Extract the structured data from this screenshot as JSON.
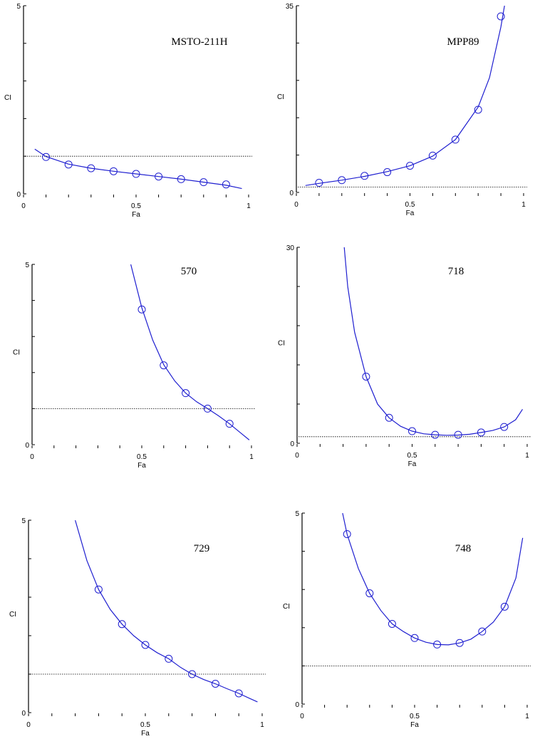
{
  "chart_data": [
    {
      "type": "line",
      "title": "MSTO-211H",
      "xlabel": "Fa",
      "ylabel": "CI",
      "xlim": [
        0,
        1
      ],
      "ylim": [
        0,
        5
      ],
      "xticks": [
        "0",
        "0.5",
        "1"
      ],
      "yticks": [
        "0",
        "5"
      ],
      "reference_y": 1,
      "points": {
        "x": [
          0.1,
          0.2,
          0.3,
          0.4,
          0.5,
          0.6,
          0.7,
          0.8,
          0.9
        ],
        "y": [
          0.98,
          0.78,
          0.68,
          0.6,
          0.53,
          0.46,
          0.39,
          0.31,
          0.25
        ]
      },
      "curve": {
        "x": [
          0.05,
          0.1,
          0.2,
          0.3,
          0.4,
          0.5,
          0.6,
          0.7,
          0.8,
          0.9,
          0.97
        ],
        "y": [
          1.19,
          0.99,
          0.79,
          0.68,
          0.6,
          0.53,
          0.46,
          0.39,
          0.31,
          0.23,
          0.14
        ]
      }
    },
    {
      "type": "line",
      "title": "MPP89",
      "xlabel": "Fa",
      "ylabel": "CI",
      "xlim": [
        0,
        1
      ],
      "ylim": [
        0,
        35
      ],
      "xticks": [
        "0",
        "0.5",
        "1"
      ],
      "yticks": [
        "0",
        "35"
      ],
      "reference_y": 1,
      "points": {
        "x": [
          0.1,
          0.2,
          0.3,
          0.4,
          0.5,
          0.6,
          0.7,
          0.8,
          0.9
        ],
        "y": [
          1.8,
          2.3,
          3.1,
          3.8,
          5.0,
          6.9,
          9.9,
          15.5,
          33.0
        ]
      },
      "curve": {
        "x": [
          0.04,
          0.1,
          0.2,
          0.3,
          0.4,
          0.5,
          0.6,
          0.7,
          0.8,
          0.85,
          0.9,
          0.92
        ],
        "y": [
          1.3,
          1.7,
          2.3,
          3.0,
          3.9,
          5.0,
          6.8,
          9.9,
          16.0,
          21.5,
          31.0,
          36.0
        ]
      }
    },
    {
      "type": "line",
      "title": "570",
      "xlabel": "Fa",
      "ylabel": "CI",
      "xlim": [
        0,
        1
      ],
      "ylim": [
        0,
        5
      ],
      "xticks": [
        "0",
        "0.5",
        "1"
      ],
      "yticks": [
        "0",
        "5"
      ],
      "reference_y": 1,
      "points": {
        "x": [
          0.5,
          0.6,
          0.7,
          0.8,
          0.9
        ],
        "y": [
          3.75,
          2.2,
          1.43,
          1.0,
          0.58
        ]
      },
      "curve": {
        "x": [
          0.45,
          0.5,
          0.55,
          0.6,
          0.65,
          0.7,
          0.75,
          0.8,
          0.85,
          0.9,
          0.95,
          0.99
        ],
        "y": [
          5.0,
          3.8,
          2.9,
          2.22,
          1.77,
          1.43,
          1.19,
          1.0,
          0.8,
          0.58,
          0.33,
          0.13
        ]
      }
    },
    {
      "type": "line",
      "title": "718",
      "xlabel": "Fa",
      "ylabel": "CI",
      "xlim": [
        0,
        1
      ],
      "ylim": [
        0,
        30
      ],
      "xticks": [
        "0",
        "0.5",
        "1"
      ],
      "yticks": [
        "0",
        "30"
      ],
      "reference_y": 1,
      "points": {
        "x": [
          0.3,
          0.4,
          0.5,
          0.6,
          0.7,
          0.8,
          0.9
        ],
        "y": [
          10.2,
          3.9,
          1.85,
          1.3,
          1.3,
          1.65,
          2.5
        ]
      },
      "curve": {
        "x": [
          0.2,
          0.22,
          0.25,
          0.3,
          0.35,
          0.4,
          0.45,
          0.5,
          0.55,
          0.6,
          0.65,
          0.7,
          0.75,
          0.8,
          0.85,
          0.9,
          0.95,
          0.98
        ],
        "y": [
          32.0,
          24.0,
          17.0,
          10.2,
          6.0,
          3.9,
          2.6,
          1.85,
          1.45,
          1.3,
          1.22,
          1.25,
          1.38,
          1.65,
          1.95,
          2.5,
          3.6,
          5.2
        ]
      }
    },
    {
      "type": "line",
      "title": "729",
      "xlabel": "Fa",
      "ylabel": "CI",
      "xlim": [
        0,
        1
      ],
      "ylim": [
        0,
        5
      ],
      "xticks": [
        "0",
        "0.5",
        "1"
      ],
      "yticks": [
        "0",
        "5"
      ],
      "reference_y": 1,
      "points": {
        "x": [
          0.3,
          0.4,
          0.5,
          0.6,
          0.7,
          0.8,
          0.9
        ],
        "y": [
          3.2,
          2.3,
          1.76,
          1.4,
          1.0,
          0.75,
          0.5
        ]
      },
      "curve": {
        "x": [
          0.2,
          0.25,
          0.3,
          0.35,
          0.4,
          0.45,
          0.5,
          0.55,
          0.6,
          0.65,
          0.7,
          0.75,
          0.8,
          0.85,
          0.9,
          0.95,
          0.98
        ],
        "y": [
          5.0,
          3.95,
          3.2,
          2.68,
          2.3,
          2.0,
          1.76,
          1.56,
          1.4,
          1.18,
          1.0,
          0.86,
          0.75,
          0.62,
          0.5,
          0.36,
          0.28
        ]
      }
    },
    {
      "type": "line",
      "title": "748",
      "xlabel": "Fa",
      "ylabel": "CI",
      "xlim": [
        0,
        1
      ],
      "ylim": [
        0,
        5
      ],
      "xticks": [
        "0",
        "0.5",
        "1"
      ],
      "yticks": [
        "0",
        "5"
      ],
      "reference_y": 1,
      "points": {
        "x": [
          0.2,
          0.3,
          0.4,
          0.5,
          0.6,
          0.7,
          0.8,
          0.9
        ],
        "y": [
          4.45,
          2.9,
          2.1,
          1.73,
          1.56,
          1.6,
          1.9,
          2.55
        ]
      },
      "curve": {
        "x": [
          0.18,
          0.2,
          0.25,
          0.3,
          0.35,
          0.4,
          0.45,
          0.5,
          0.55,
          0.6,
          0.65,
          0.7,
          0.75,
          0.8,
          0.85,
          0.9,
          0.95,
          0.98
        ],
        "y": [
          5.0,
          4.45,
          3.55,
          2.9,
          2.45,
          2.1,
          1.9,
          1.73,
          1.62,
          1.56,
          1.55,
          1.6,
          1.7,
          1.9,
          2.15,
          2.55,
          3.3,
          4.35
        ]
      }
    }
  ],
  "colors": {
    "curve": "#1f1fd0",
    "axis": "#000000"
  }
}
